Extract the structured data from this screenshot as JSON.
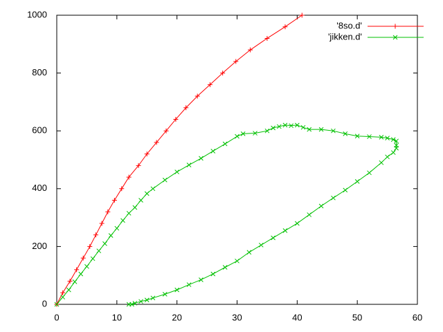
{
  "chart_data": {
    "type": "line",
    "xlim": [
      0,
      60
    ],
    "xticks": [
      0,
      10,
      20,
      30,
      40,
      50,
      60
    ],
    "ylim": [
      0,
      1000
    ],
    "yticks": [
      0,
      200,
      400,
      600,
      800,
      1000
    ],
    "legend": "top-right",
    "series": [
      {
        "name": "'8so.d'",
        "color": "#ff0000",
        "marker": "+",
        "x": [
          0,
          1,
          2.2,
          3.3,
          4.4,
          5.5,
          6.5,
          7.5,
          8.5,
          9.6,
          10.8,
          12,
          13.6,
          15,
          16.6,
          18.2,
          19.8,
          21.5,
          23.4,
          25.5,
          27.6,
          29.8,
          32.2,
          35,
          38,
          40.8
        ],
        "values": [
          0,
          40,
          80,
          120,
          160,
          200,
          240,
          280,
          320,
          360,
          400,
          440,
          480,
          520,
          560,
          600,
          640,
          680,
          720,
          760,
          800,
          840,
          880,
          920,
          960,
          1000
        ]
      },
      {
        "name": "'jikken.d'",
        "color": "#00c000",
        "marker": "x",
        "x": [
          0,
          1,
          2,
          3,
          4,
          5,
          6,
          7,
          8,
          9,
          10,
          11,
          12,
          13,
          14,
          15,
          16,
          18,
          20,
          22,
          24,
          26,
          28,
          30,
          31,
          33,
          35,
          36,
          37,
          38,
          39,
          40,
          41,
          42,
          44,
          46,
          48,
          50,
          52,
          54,
          55,
          56,
          56.5,
          56.5,
          56.5,
          56,
          55,
          54,
          52,
          50,
          48,
          46,
          44,
          42,
          40,
          38,
          36,
          34,
          32,
          30,
          28,
          26,
          24,
          22,
          20,
          18,
          16,
          15,
          14,
          13,
          12.5,
          12
        ],
        "values": [
          0,
          25,
          50,
          78,
          105,
          131,
          158,
          185,
          210,
          238,
          263,
          290,
          315,
          335,
          360,
          383,
          400,
          430,
          458,
          482,
          505,
          530,
          555,
          581,
          590,
          592,
          600,
          610,
          615,
          620,
          618,
          620,
          612,
          605,
          605,
          600,
          590,
          582,
          580,
          578,
          575,
          570,
          565,
          550,
          540,
          525,
          510,
          490,
          455,
          425,
          395,
          368,
          340,
          310,
          280,
          255,
          230,
          205,
          180,
          150,
          128,
          105,
          85,
          68,
          50,
          35,
          22,
          15,
          10,
          4,
          0,
          0
        ]
      }
    ]
  }
}
